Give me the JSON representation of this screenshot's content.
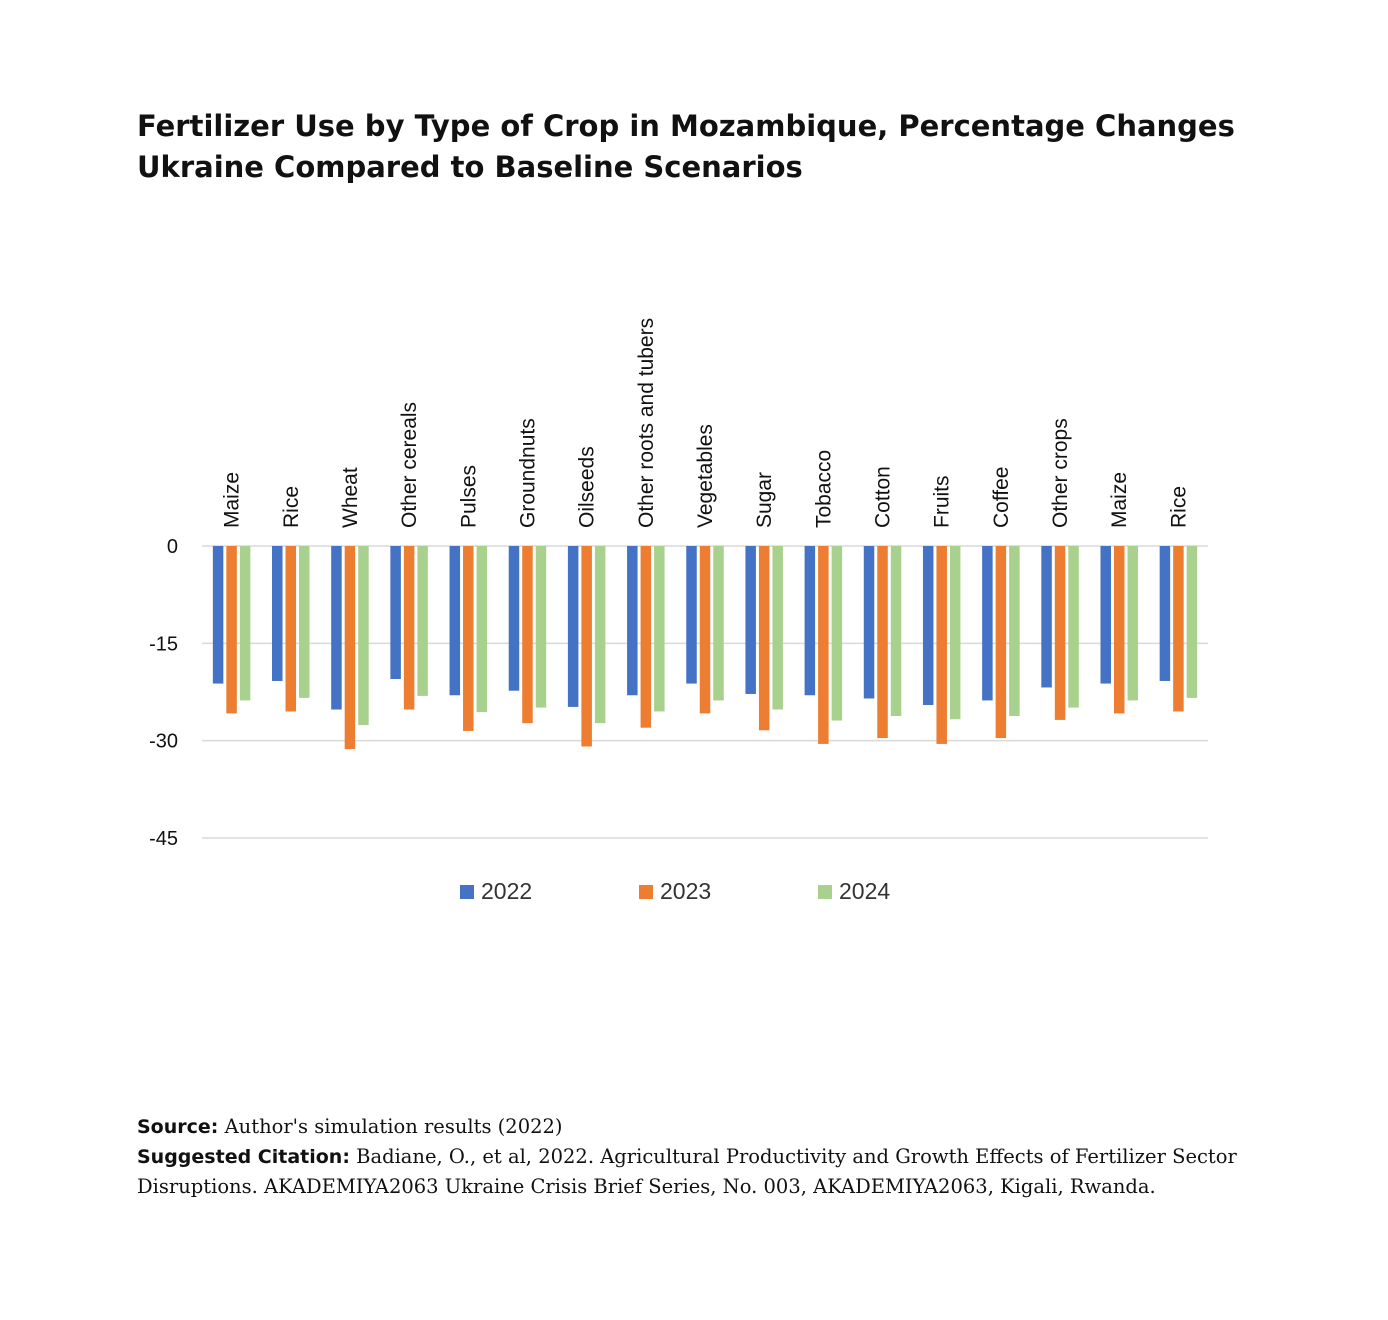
{
  "title_line1": "Fertilizer Use by Type of Crop in Mozambique, Percentage Changes",
  "title_line2": "Ukraine Compared to Baseline Scenarios",
  "colors": {
    "2022": "#4472C4",
    "2023": "#ED7D31",
    "2024": "#A9D18E",
    "grid": "#d9d9d9"
  },
  "chart_data": {
    "type": "bar",
    "categories": [
      "Maize",
      "Rice",
      "Wheat",
      "Other cereals",
      "Pulses",
      "Groundnuts",
      "Oilseeds",
      "Other roots and tubers",
      "Vegetables",
      "Sugar",
      "Tobacco",
      "Cotton",
      "Fruits",
      "Coffee",
      "Other crops",
      "Maize",
      "Rice"
    ],
    "series": [
      {
        "name": "2022",
        "values": [
          -21.2,
          -20.8,
          -25.2,
          -20.5,
          -23.0,
          -22.3,
          -24.8,
          -23.0,
          -21.2,
          -22.8,
          -23.0,
          -23.5,
          -24.5,
          -23.8,
          -21.8,
          -21.2,
          -20.8
        ]
      },
      {
        "name": "2023",
        "values": [
          -25.8,
          -25.5,
          -31.3,
          -25.2,
          -28.5,
          -27.3,
          -30.9,
          -28.0,
          -25.8,
          -28.4,
          -30.5,
          -29.6,
          -30.5,
          -29.6,
          -26.8,
          -25.8,
          -25.5
        ]
      },
      {
        "name": "2024",
        "values": [
          -23.8,
          -23.4,
          -27.6,
          -23.1,
          -25.6,
          -24.9,
          -27.3,
          -25.5,
          -23.8,
          -25.2,
          -26.9,
          -26.2,
          -26.7,
          -26.2,
          -24.9,
          -23.8,
          -23.4
        ]
      }
    ],
    "ylim": [
      -45,
      0
    ],
    "yticks": [
      0,
      -15,
      -30,
      -45
    ],
    "ytick_labels": [
      "0",
      "-15",
      "-30",
      "-45"
    ],
    "grid": true,
    "legend": "bottom",
    "xlabel": "",
    "ylabel": ""
  },
  "footer": {
    "source_label": "Source:",
    "source_text": " Author's simulation results (2022)",
    "citation_label": "Suggested Citation:",
    "citation_text": " Badiane, O., et al, 2022. Agricultural Productivity and Growth Effects of Fertilizer Sector",
    "citation_text2": "Disruptions. AKADEMIYA2063 Ukraine Crisis Brief Series, No. 003, AKADEMIYA2063, Kigali, Rwanda."
  }
}
